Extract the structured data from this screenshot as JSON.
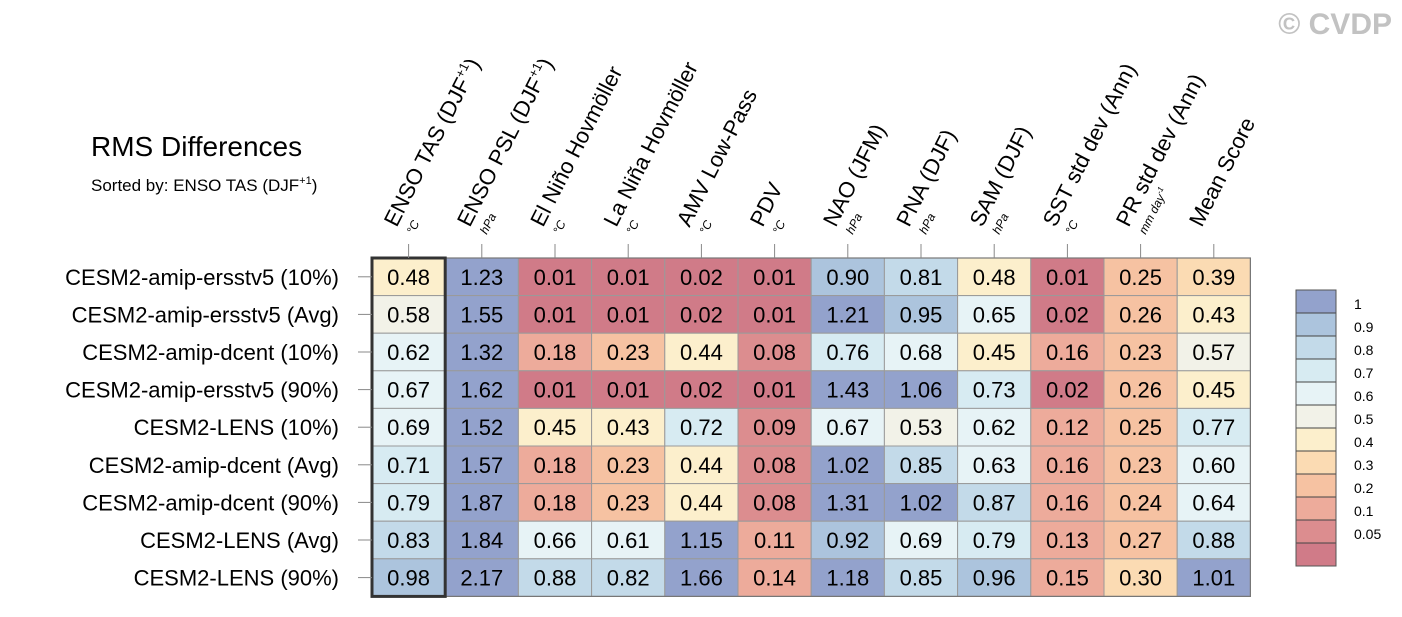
{
  "watermark": "© CVDP",
  "chart_data": {
    "type": "heatmap",
    "title": "RMS Differences",
    "subtitle": "Sorted by: ENSO TAS (DJF",
    "subtitle_sup": "+1",
    "subtitle_end": ")",
    "columns": [
      {
        "name": "ENSO TAS (DJF",
        "sup": "+1",
        "tail": ")",
        "unit": "°C",
        "unit_sup": ""
      },
      {
        "name": "ENSO PSL (DJF",
        "sup": "+1",
        "tail": ")",
        "unit": "hPa",
        "unit_sup": ""
      },
      {
        "name": "El Niño Hovmöller",
        "sup": "",
        "tail": "",
        "unit": "°C",
        "unit_sup": ""
      },
      {
        "name": "La Niña Hovmöller",
        "sup": "",
        "tail": "",
        "unit": "°C",
        "unit_sup": ""
      },
      {
        "name": "AMV Low-Pass",
        "sup": "",
        "tail": "",
        "unit": "°C",
        "unit_sup": ""
      },
      {
        "name": "PDV",
        "sup": "",
        "tail": "",
        "unit": "°C",
        "unit_sup": ""
      },
      {
        "name": "NAO (JFM)",
        "sup": "",
        "tail": "",
        "unit": "hPa",
        "unit_sup": ""
      },
      {
        "name": "PNA (DJF)",
        "sup": "",
        "tail": "",
        "unit": "hPa",
        "unit_sup": ""
      },
      {
        "name": "SAM (DJF)",
        "sup": "",
        "tail": "",
        "unit": "hPa",
        "unit_sup": ""
      },
      {
        "name": "SST std dev (Ann)",
        "sup": "",
        "tail": "",
        "unit": "°C",
        "unit_sup": ""
      },
      {
        "name": "PR std dev (Ann)",
        "sup": "",
        "tail": "",
        "unit": "mm day",
        "unit_sup": "-1"
      },
      {
        "name": "Mean Score",
        "sup": "",
        "tail": "",
        "unit": "",
        "unit_sup": ""
      }
    ],
    "rows": [
      "CESM2-amip-ersstv5 (10%)",
      "CESM2-amip-ersstv5 (Avg)",
      "CESM2-amip-dcent (10%)",
      "CESM2-amip-ersstv5 (90%)",
      "CESM2-LENS (10%)",
      "CESM2-amip-dcent (Avg)",
      "CESM2-amip-dcent (90%)",
      "CESM2-LENS (Avg)",
      "CESM2-LENS (90%)"
    ],
    "values": [
      [
        0.48,
        1.23,
        0.01,
        0.01,
        0.02,
        0.01,
        0.9,
        0.81,
        0.48,
        0.01,
        0.25,
        0.39
      ],
      [
        0.58,
        1.55,
        0.01,
        0.01,
        0.02,
        0.01,
        1.21,
        0.95,
        0.65,
        0.02,
        0.26,
        0.43
      ],
      [
        0.62,
        1.32,
        0.18,
        0.23,
        0.44,
        0.08,
        0.76,
        0.68,
        0.45,
        0.16,
        0.23,
        0.57
      ],
      [
        0.67,
        1.62,
        0.01,
        0.01,
        0.02,
        0.01,
        1.43,
        1.06,
        0.73,
        0.02,
        0.26,
        0.45
      ],
      [
        0.69,
        1.52,
        0.45,
        0.43,
        0.72,
        0.09,
        0.67,
        0.53,
        0.62,
        0.12,
        0.25,
        0.77
      ],
      [
        0.71,
        1.57,
        0.18,
        0.23,
        0.44,
        0.08,
        1.02,
        0.85,
        0.63,
        0.16,
        0.23,
        0.6
      ],
      [
        0.79,
        1.87,
        0.18,
        0.23,
        0.44,
        0.08,
        1.31,
        1.02,
        0.87,
        0.16,
        0.24,
        0.64
      ],
      [
        0.83,
        1.84,
        0.66,
        0.61,
        1.15,
        0.11,
        0.92,
        0.69,
        0.79,
        0.13,
        0.27,
        0.88
      ],
      [
        0.98,
        2.17,
        0.88,
        0.82,
        1.66,
        0.14,
        1.18,
        0.85,
        0.96,
        0.15,
        0.3,
        1.01
      ]
    ],
    "highlighted_column": 0,
    "color_levels": {
      "labels": [
        "1",
        "0.9",
        "0.8",
        "0.7",
        "0.6",
        "0.5",
        "0.4",
        "0.3",
        "0.2",
        "0.1",
        "0.05"
      ],
      "thresholds": [
        1,
        0.9,
        0.8,
        0.7,
        0.6,
        0.5,
        0.4,
        0.3,
        0.2,
        0.1,
        0.05
      ],
      "colors": [
        "#93a2cc",
        "#acc4dd",
        "#c3dae9",
        "#d7ebf2",
        "#e7f3f6",
        "#f2f2e8",
        "#fcefcc",
        "#fbdbb3",
        "#f6c2a2",
        "#edab9b",
        "#dc8d8f",
        "#d07b88"
      ]
    }
  }
}
